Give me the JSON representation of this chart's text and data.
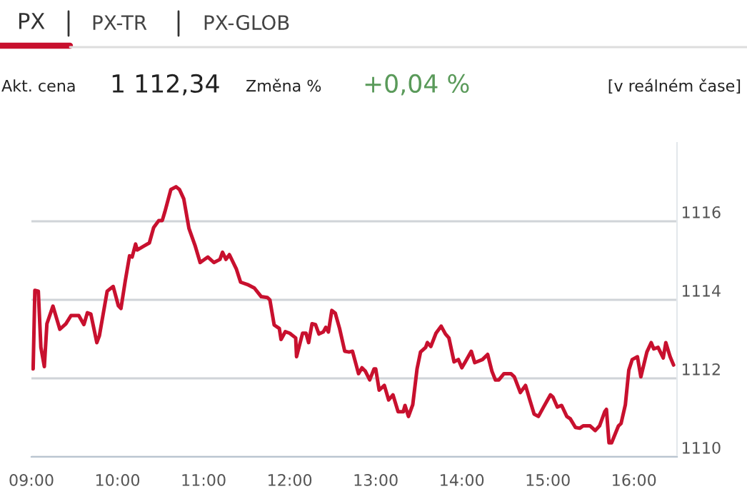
{
  "chart_data": {
    "type": "line",
    "title": "PX",
    "annotations": [
      "PX-TR",
      "PX-GLOB",
      "Akt. cena",
      "1 112,34",
      "Změna %",
      "+0,04 %",
      "[v reálném čase]"
    ],
    "series": [
      {
        "color": "#c8102e",
        "x": [
          9.02,
          9.04,
          9.08,
          9.11,
          9.15,
          9.18,
          9.25,
          9.33,
          9.4,
          9.46,
          9.55,
          9.61,
          9.65,
          9.69,
          9.76,
          9.79,
          9.88,
          9.95,
          10.01,
          10.04,
          10.09,
          10.14,
          10.17,
          10.21,
          10.23,
          10.3,
          10.37,
          10.42,
          10.48,
          10.52,
          10.55,
          10.62,
          10.68,
          10.72,
          10.77,
          10.83,
          10.9,
          10.96,
          11.05,
          11.12,
          11.19,
          11.22,
          11.26,
          11.3,
          11.38,
          11.43,
          11.51,
          11.59,
          11.67,
          11.74,
          11.77,
          11.82,
          11.88,
          11.9,
          11.95,
          12.0,
          12.07,
          12.08,
          12.15,
          12.19,
          12.22,
          12.26,
          12.3,
          12.34,
          12.39,
          12.42,
          12.45,
          12.49,
          12.53,
          12.58,
          12.64,
          12.69,
          12.73,
          12.8,
          12.84,
          12.88,
          12.93,
          12.98,
          13.0,
          13.04,
          13.1,
          13.15,
          13.2,
          13.26,
          13.32,
          13.34,
          13.38,
          13.43,
          13.48,
          13.52,
          13.58,
          13.6,
          13.64,
          13.7,
          13.76,
          13.81,
          13.85,
          13.91,
          13.96,
          14.0,
          14.04,
          14.11,
          14.15,
          14.24,
          14.3,
          14.35,
          14.39,
          14.43,
          14.49,
          14.57,
          14.61,
          14.68,
          14.74,
          14.79,
          14.84,
          14.89,
          14.95,
          15.03,
          15.06,
          15.11,
          15.16,
          15.22,
          15.26,
          15.32,
          15.37,
          15.41,
          15.49,
          15.55,
          15.6,
          15.66,
          15.68,
          15.71,
          15.74,
          15.82,
          15.85,
          15.9,
          15.94,
          15.98,
          16.04,
          16.08,
          16.15,
          16.2,
          16.23,
          16.28,
          16.34,
          16.37,
          16.42,
          16.46
        ],
        "values": [
          1112.24,
          1114.24,
          1114.22,
          1112.79,
          1112.3,
          1113.39,
          1113.84,
          1113.25,
          1113.39,
          1113.6,
          1113.6,
          1113.37,
          1113.67,
          1113.64,
          1112.91,
          1113.09,
          1114.22,
          1114.34,
          1113.85,
          1113.78,
          1114.48,
          1115.12,
          1115.09,
          1115.42,
          1115.27,
          1115.36,
          1115.45,
          1115.84,
          1116.02,
          1116.02,
          1116.24,
          1116.81,
          1116.88,
          1116.81,
          1116.57,
          1115.82,
          1115.39,
          1114.95,
          1115.09,
          1114.95,
          1115.03,
          1115.21,
          1115.03,
          1115.15,
          1114.79,
          1114.45,
          1114.39,
          1114.3,
          1114.08,
          1114.06,
          1114.0,
          1113.36,
          1113.27,
          1112.99,
          1113.19,
          1113.15,
          1113.03,
          1112.55,
          1113.15,
          1113.15,
          1112.91,
          1113.39,
          1113.37,
          1113.13,
          1113.18,
          1113.3,
          1113.18,
          1113.73,
          1113.66,
          1113.27,
          1112.69,
          1112.67,
          1112.69,
          1112.12,
          1112.27,
          1112.18,
          1111.96,
          1112.24,
          1112.24,
          1111.7,
          1111.82,
          1111.45,
          1111.58,
          1111.15,
          1111.15,
          1111.31,
          1111.03,
          1111.33,
          1112.24,
          1112.67,
          1112.79,
          1112.91,
          1112.81,
          1113.15,
          1113.33,
          1113.13,
          1113.03,
          1112.42,
          1112.48,
          1112.27,
          1112.42,
          1112.69,
          1112.4,
          1112.48,
          1112.61,
          1112.18,
          1111.96,
          1111.96,
          1112.12,
          1112.12,
          1112.04,
          1111.64,
          1111.82,
          1111.45,
          1111.09,
          1111.03,
          1111.27,
          1111.58,
          1111.52,
          1111.27,
          1111.31,
          1111.03,
          1110.97,
          1110.75,
          1110.73,
          1110.79,
          1110.79,
          1110.67,
          1110.79,
          1111.15,
          1111.21,
          1110.36,
          1110.36,
          1110.79,
          1110.85,
          1111.33,
          1112.21,
          1112.48,
          1112.55,
          1112.04,
          1112.67,
          1112.91,
          1112.75,
          1112.79,
          1112.52,
          1112.91,
          1112.55,
          1112.34
        ]
      }
    ],
    "xlim": [
      9,
      16.5
    ],
    "ylim": [
      1110,
      1118
    ],
    "xticks": [
      {
        "value": 9,
        "label": "09:00"
      },
      {
        "value": 10,
        "label": "10:00"
      },
      {
        "value": 11,
        "label": "11:00"
      },
      {
        "value": 12,
        "label": "12:00"
      },
      {
        "value": 13,
        "label": "13:00"
      },
      {
        "value": 14,
        "label": "14:00"
      },
      {
        "value": 15,
        "label": "15:00"
      },
      {
        "value": 16,
        "label": "16:00"
      }
    ],
    "yticks": [
      1110,
      1112,
      1114,
      1116
    ],
    "grid": "y",
    "line_style": "solid"
  }
}
